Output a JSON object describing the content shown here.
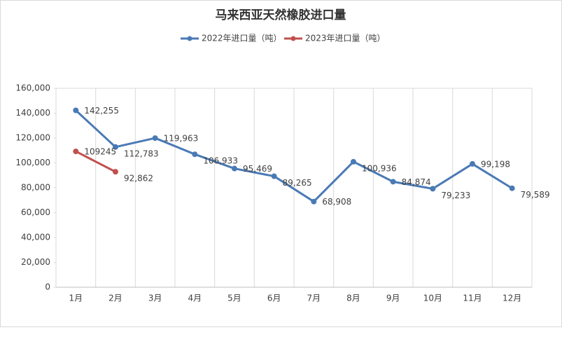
{
  "chart_data": {
    "type": "line",
    "title": "马来西亚天然橡胶进口量",
    "categories": [
      "1月",
      "2月",
      "3月",
      "4月",
      "5月",
      "6月",
      "7月",
      "8月",
      "9月",
      "10月",
      "11月",
      "12月"
    ],
    "series": [
      {
        "name": "2022年进口量（吨）",
        "color": "#4a7ab5",
        "values": [
          142255,
          112783,
          119963,
          106933,
          95469,
          89265,
          68908,
          100936,
          84874,
          79233,
          99198,
          79589
        ],
        "value_labels": [
          "142,255",
          "112,783",
          "119,963",
          "106,933",
          "95,469",
          "89,265",
          "68,908",
          "100,936",
          "84,874",
          "79,233",
          "99,198",
          "79,589"
        ]
      },
      {
        "name": "2023年进口量（吨）",
        "color": "#c0504d",
        "values": [
          109245,
          92862,
          null,
          null,
          null,
          null,
          null,
          null,
          null,
          null,
          null,
          null
        ],
        "value_labels": [
          "109245",
          "92,862",
          null,
          null,
          null,
          null,
          null,
          null,
          null,
          null,
          null,
          null
        ]
      }
    ],
    "ylim": [
      0,
      160000
    ],
    "yticks": [
      0,
      {
        "value": 20000,
        "label": "20,000"
      },
      {
        "value": 40000,
        "label": "40,000"
      },
      {
        "value": 60000,
        "label": "60,000"
      },
      {
        "value": 80000,
        "label": "80,000"
      },
      {
        "value": 100000,
        "label": "100,000"
      },
      {
        "value": 120000,
        "label": "120,000"
      },
      {
        "value": 140000,
        "label": "140,000"
      },
      {
        "value": 160000,
        "label": "160,000"
      }
    ],
    "legend": "top"
  }
}
